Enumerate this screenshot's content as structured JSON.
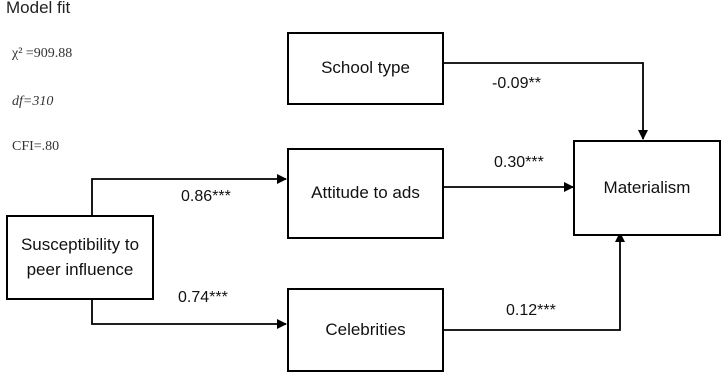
{
  "model_fit": {
    "title": "Model fit",
    "chi_square": "χ² =909.88",
    "df": "df=310",
    "cfi": "CFI=.80"
  },
  "nodes": {
    "school_type": "School type",
    "attitude_to_ads": "Attitude to ads",
    "materialism": "Materialism",
    "susceptibility": "Susceptibility to peer influence",
    "celebrities": "Celebrities"
  },
  "paths": {
    "school_to_materialism": "-0.09**",
    "attitude_to_materialism": "0.30***",
    "susceptibility_to_attitude": "0.86***",
    "susceptibility_to_celebrities": "0.74***",
    "celebrities_to_materialism": "0.12***"
  }
}
